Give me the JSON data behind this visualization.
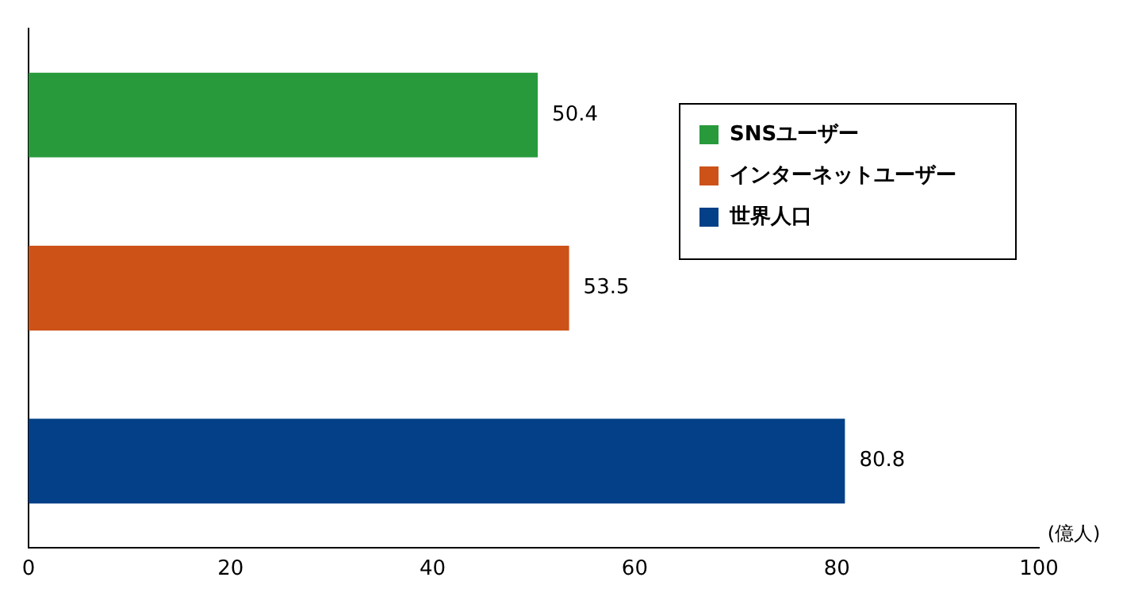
{
  "chart_data": {
    "type": "bar",
    "orientation": "horizontal",
    "xlabel": "(億人)",
    "categories": [
      null,
      null,
      null
    ],
    "series": [
      {
        "name": "SNSユーザー",
        "color": "#289a3c",
        "values": [
          50.4,
          null,
          null
        ]
      },
      {
        "name": "インターネットユーザー",
        "color": "#cc5218",
        "values": [
          null,
          53.5,
          null
        ]
      },
      {
        "name": "世界人口",
        "color": "#034087",
        "values": [
          null,
          null,
          80.8
        ]
      }
    ],
    "xlim": [
      0,
      100
    ],
    "xticks": [
      0,
      20,
      40,
      60,
      80,
      100
    ],
    "grid": false,
    "legend": "top right",
    "data_labels": true
  }
}
